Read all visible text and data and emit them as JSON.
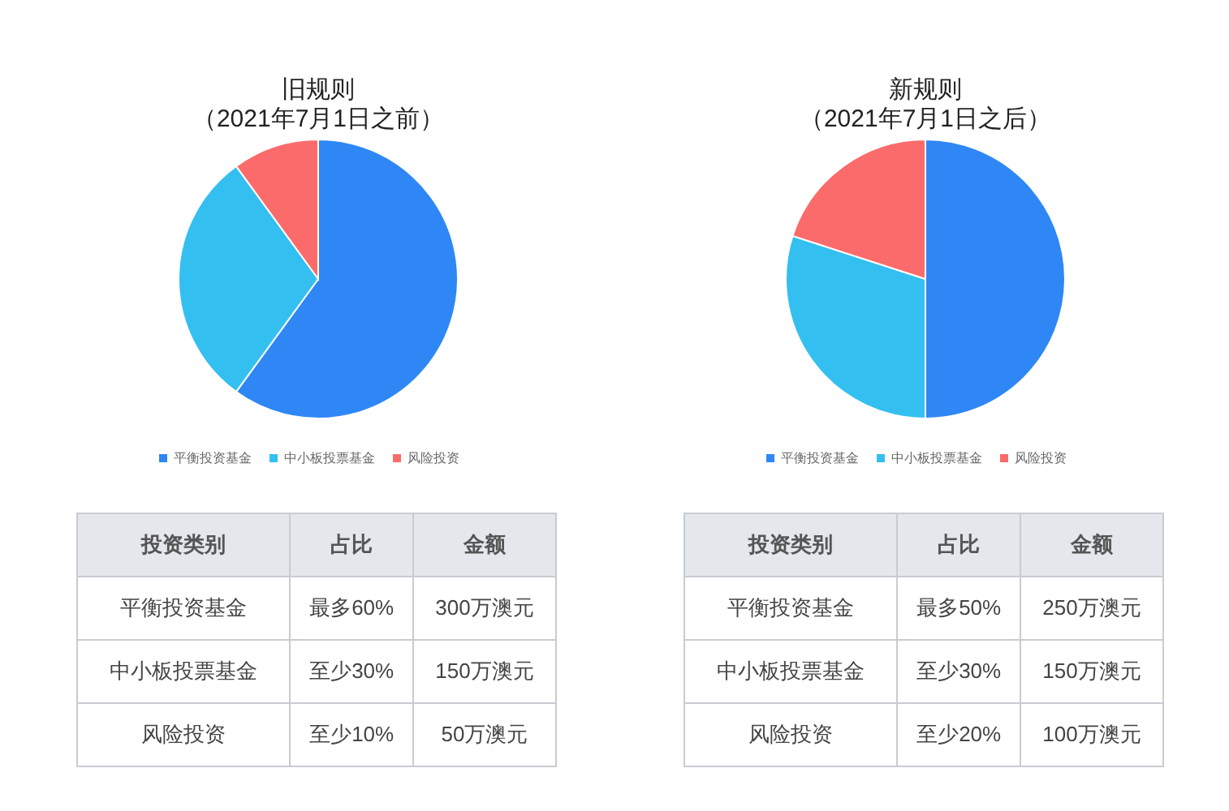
{
  "chart_data": [
    {
      "type": "pie",
      "title": "旧规则",
      "subtitle": "（2021年7月1日之前）",
      "categories": [
        "平衡投资基金",
        "中小板投票基金",
        "风险投资"
      ],
      "values": [
        60,
        30,
        10
      ],
      "colors": [
        "#2e87f5",
        "#34bff1",
        "#fb6b6b"
      ],
      "legend": "bottom",
      "annotations": [
        "投资类别",
        "占比",
        "金额",
        "最多60%",
        "至少30%",
        "至少10%",
        "300万澳元",
        "150万澳元",
        "50万澳元"
      ]
    },
    {
      "type": "pie",
      "title": "新规则",
      "subtitle": "（2021年7月1日之后）",
      "categories": [
        "平衡投资基金",
        "中小板投票基金",
        "风险投资"
      ],
      "values": [
        50,
        30,
        20
      ],
      "colors": [
        "#2e87f5",
        "#34bff1",
        "#fb6b6b"
      ],
      "legend": "bottom",
      "annotations": [
        "投资类别",
        "占比",
        "金额",
        "最多50%",
        "至少30%",
        "至少20%",
        "250万澳元",
        "150万澳元",
        "100万澳元"
      ]
    }
  ]
}
